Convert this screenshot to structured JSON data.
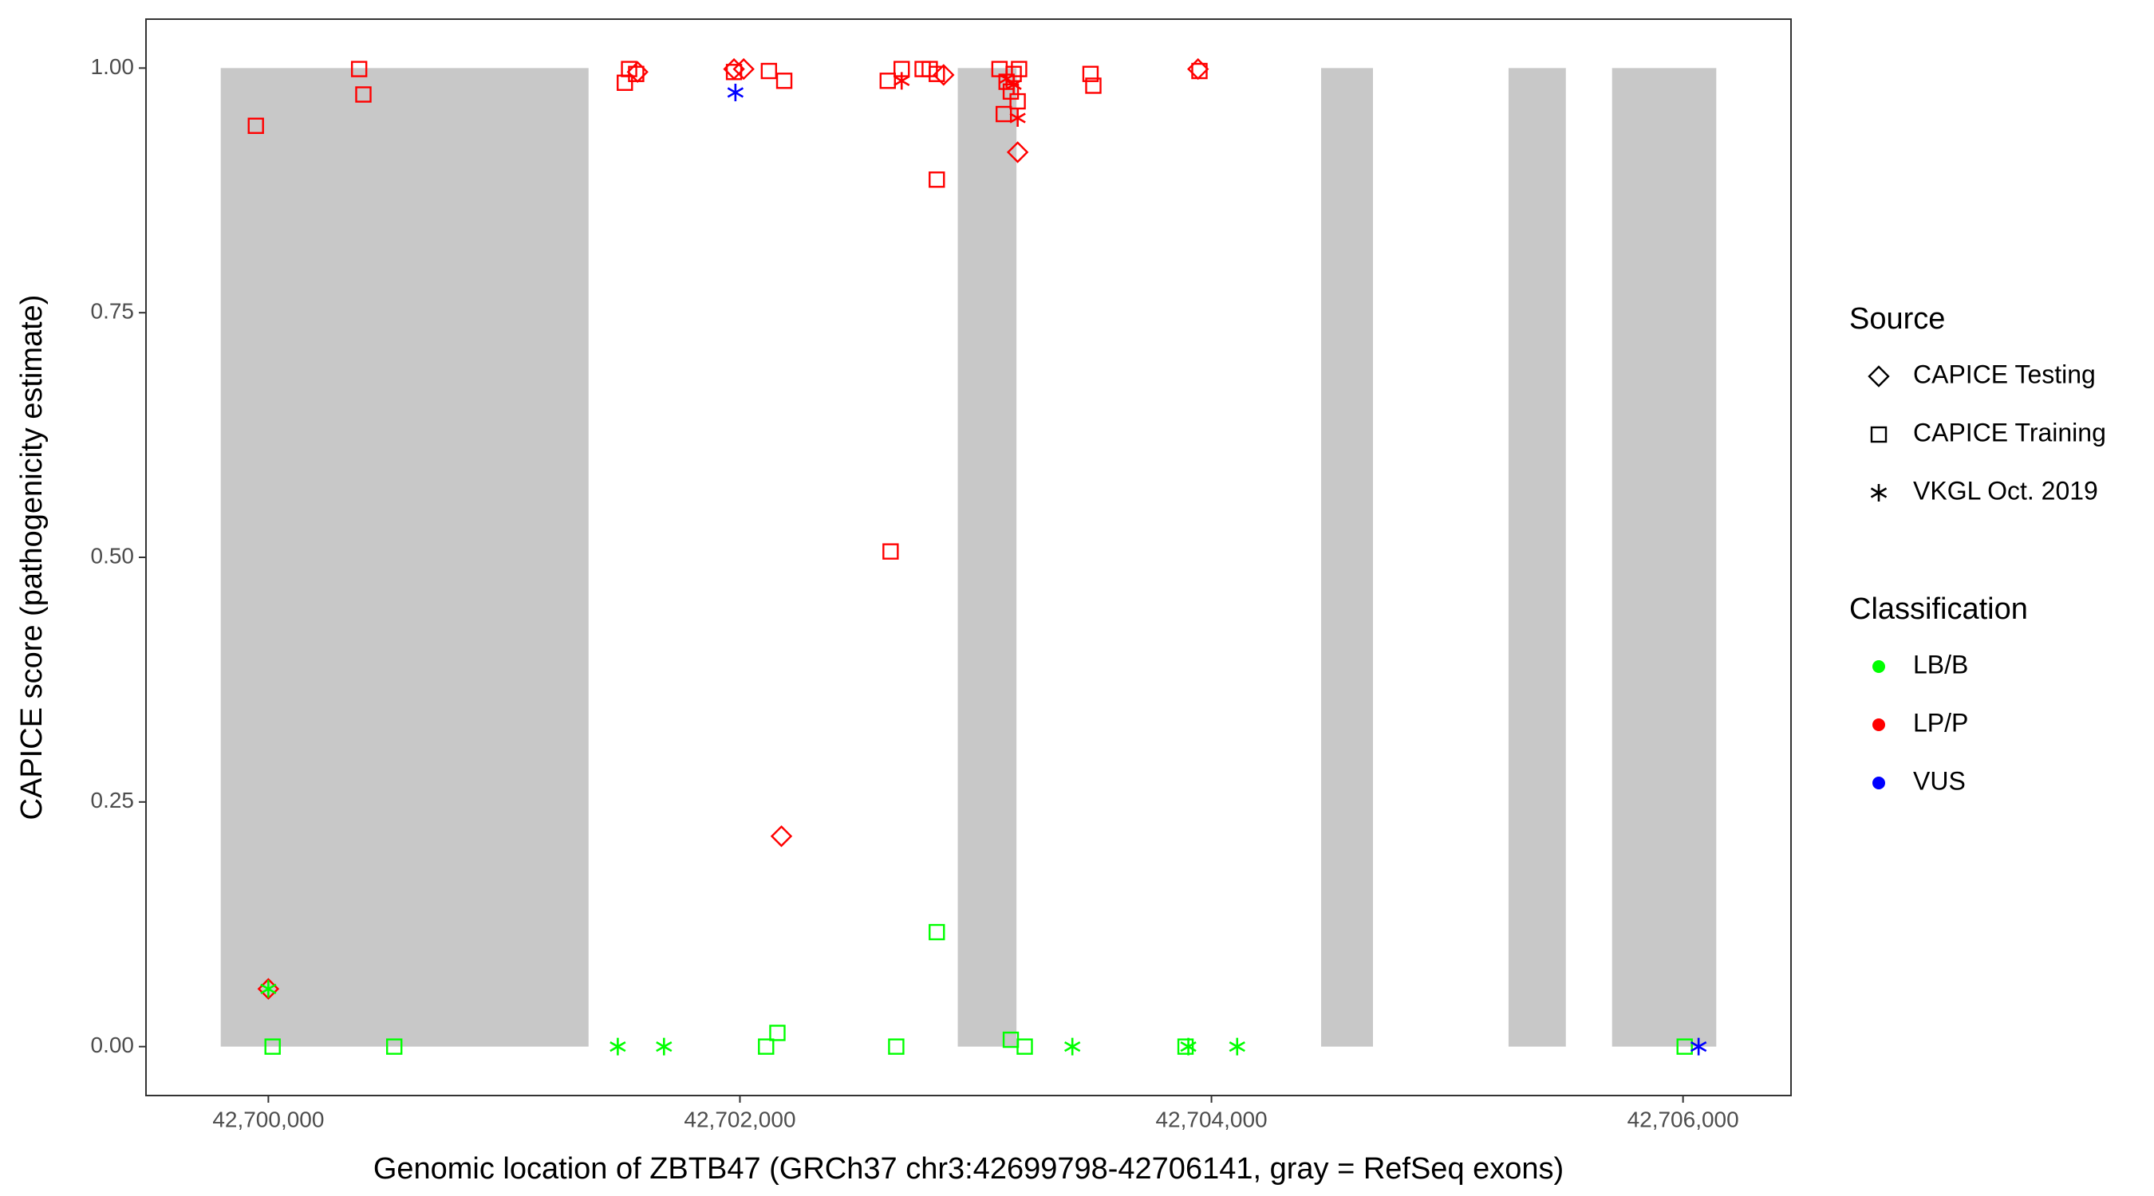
{
  "chart_data": {
    "type": "scatter",
    "x_label": "Genomic location of ZBTB47 (GRCh37 chr3:42699798-42706141, gray = RefSeq exons)",
    "y_label": "CAPICE score (pathogenicity estimate)",
    "xlim": [
      42699481,
      42706458
    ],
    "ylim": [
      -0.05,
      1.05
    ],
    "xticks": [
      {
        "value": 42700000,
        "label": "42,700,000"
      },
      {
        "value": 42702000,
        "label": "42,702,000"
      },
      {
        "value": 42704000,
        "label": "42,704,000"
      },
      {
        "value": 42706000,
        "label": "42,706,000"
      }
    ],
    "yticks": [
      {
        "value": 0,
        "label": "0.00"
      },
      {
        "value": 0.25,
        "label": "0.25"
      },
      {
        "value": 0.5,
        "label": "0.50"
      },
      {
        "value": 0.75,
        "label": "0.75"
      },
      {
        "value": 1,
        "label": "1.00"
      }
    ],
    "grid": false,
    "exon_color": "#c8c8c8",
    "exon_starts": [
      42699798,
      42702924,
      42704465,
      42705260,
      42705699
    ],
    "exon_ends": [
      42701358,
      42703173,
      42704685,
      42705503,
      42706141
    ],
    "shape_legend_title": "Source",
    "color_legend_title": "Classification",
    "classifications": [
      {
        "name": "LB/B",
        "color": "#00ff00"
      },
      {
        "name": "LP/P",
        "color": "#ff0000"
      },
      {
        "name": "VUS",
        "color": "#0000ff"
      }
    ],
    "series": [
      {
        "name": "CAPICE Testing",
        "shape": "diamond",
        "x": [
          42701566,
          42701975,
          42702016,
          42702864,
          42703178,
          42703943,
          42702176,
          42700000
        ],
        "values": [
          0.996,
          0.999,
          0.999,
          0.993,
          0.914,
          0.999,
          0.215,
          0.059
        ],
        "classes": [
          "LP/P",
          "LP/P",
          "LP/P",
          "LP/P",
          "LP/P",
          "LP/P",
          "LP/P",
          "LP/P"
        ]
      },
      {
        "name": "CAPICE Training",
        "shape": "square",
        "x": [
          42699947,
          42700385,
          42700403,
          42701512,
          42701530,
          42701560,
          42701975,
          42702123,
          42702188,
          42702627,
          42702686,
          42702775,
          42702805,
          42702835,
          42702835,
          42702639,
          42703101,
          42703131,
          42703161,
          42703184,
          42703178,
          42703119,
          42703149,
          42703487,
          42703499,
          42703949,
          42700018,
          42700534,
          42702111,
          42702159,
          42702663,
          42702835,
          42703149,
          42703208,
          42703890,
          42706007
        ],
        "values": [
          0.941,
          0.999,
          0.973,
          0.985,
          0.999,
          0.994,
          0.996,
          0.997,
          0.987,
          0.987,
          0.999,
          0.999,
          0.999,
          0.994,
          0.886,
          0.506,
          0.999,
          0.986,
          0.994,
          0.999,
          0.966,
          0.953,
          0.976,
          0.994,
          0.982,
          0.997,
          0,
          0,
          0,
          0.014,
          0,
          0.117,
          0.007,
          0,
          0,
          0
        ],
        "classes": [
          "LP/P",
          "LP/P",
          "LP/P",
          "LP/P",
          "LP/P",
          "LP/P",
          "LP/P",
          "LP/P",
          "LP/P",
          "LP/P",
          "LP/P",
          "LP/P",
          "LP/P",
          "LP/P",
          "LP/P",
          "LP/P",
          "LP/P",
          "LP/P",
          "LP/P",
          "LP/P",
          "LP/P",
          "LP/P",
          "LP/P",
          "LP/P",
          "LP/P",
          "LP/P",
          "LB/B",
          "LB/B",
          "LB/B",
          "LB/B",
          "LB/B",
          "LB/B",
          "LB/B",
          "LB/B",
          "LB/B",
          "LB/B"
        ]
      },
      {
        "name": "VKGL Oct. 2019",
        "shape": "asterisk",
        "x": [
          42702686,
          42703131,
          42703161,
          42703178,
          42701981,
          42706066,
          42701482,
          42701678,
          42703410,
          42703902,
          42704109,
          42700000
        ],
        "values": [
          0.987,
          0.989,
          0.983,
          0.949,
          0.975,
          0,
          0,
          0,
          0,
          0,
          0,
          0.059
        ],
        "classes": [
          "LP/P",
          "LP/P",
          "LP/P",
          "LP/P",
          "VUS",
          "VUS",
          "LB/B",
          "LB/B",
          "LB/B",
          "LB/B",
          "LB/B",
          "LB/B"
        ]
      }
    ]
  }
}
